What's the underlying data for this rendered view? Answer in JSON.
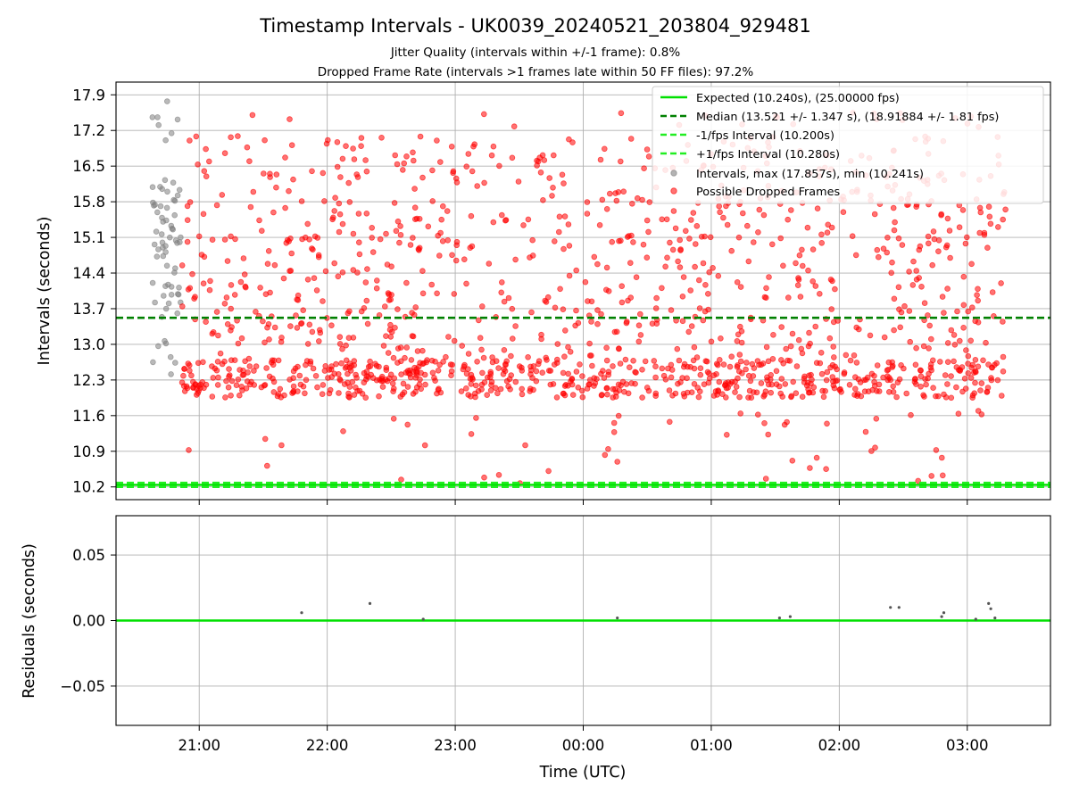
{
  "figure": {
    "title": "Timestamp Intervals - UK0039_20240521_203804_929481",
    "subtitle_line1": "Jitter Quality (intervals within +/-1 frame): 0.8%",
    "subtitle_line2": "Dropped Frame Rate (intervals >1 frames late within 50 FF files): 97.2%"
  },
  "chart_data": [
    {
      "type": "scatter",
      "panel": "intervals",
      "ylabel": "Intervals (seconds)",
      "xlabel": "",
      "ylim": [
        9.95,
        18.15
      ],
      "yticks": [
        "10.2",
        "10.9",
        "11.6",
        "12.3",
        "13.0",
        "13.7",
        "14.4",
        "15.1",
        "15.8",
        "16.5",
        "17.2",
        "17.9"
      ],
      "xlim": [
        "20:21",
        "03:39"
      ],
      "xticks": [
        "21:00",
        "22:00",
        "23:00",
        "00:00",
        "01:00",
        "02:00",
        "03:00"
      ],
      "grid": true,
      "legend_position": "top-right",
      "reference_lines": [
        {
          "label": "Expected (10.240s), (25.00000 fps)",
          "y": 10.24,
          "color": "#00e000",
          "style": "solid"
        },
        {
          "label": "Median (13.521 +/- 1.347 s), (18.91884 +/- 1.81 fps)",
          "y": 13.521,
          "color": "#008000",
          "style": "dashed"
        },
        {
          "label": "-1/fps Interval (10.200s)",
          "y": 10.2,
          "color": "#22ee22",
          "style": "dashed"
        },
        {
          "label": "+1/fps Interval (10.280s)",
          "y": 10.28,
          "color": "#22ee22",
          "style": "dashed"
        }
      ],
      "series": [
        {
          "name": "Intervals, max (17.857s), min (10.241s)",
          "color": "#808080",
          "x_range": [
            "20:38",
            "20:52"
          ],
          "y_range": [
            10.241,
            17.857
          ],
          "n_points": 70
        },
        {
          "name": "Possible Dropped Frames",
          "color": "#ff0000",
          "x_range": [
            "20:52",
            "03:18"
          ],
          "y_range": [
            10.24,
            17.56
          ],
          "n_points": 1500
        }
      ]
    },
    {
      "type": "scatter",
      "panel": "residuals",
      "ylabel": "Residuals (seconds)",
      "xlabel": "Time (UTC)",
      "ylim": [
        -0.08,
        0.08
      ],
      "yticks": [
        "−0.05",
        "0.00",
        "0.05"
      ],
      "xlim": [
        "20:21",
        "03:39"
      ],
      "xticks": [
        "21:00",
        "22:00",
        "23:00",
        "00:00",
        "01:00",
        "02:00",
        "03:00"
      ],
      "grid": true,
      "zero_line_color": "#00e000",
      "series": [
        {
          "name": "",
          "color": "#555555",
          "points": [
            {
              "x": "21:48",
              "y": 0.006
            },
            {
              "x": "22:20",
              "y": 0.013
            },
            {
              "x": "22:45",
              "y": 0.001
            },
            {
              "x": "00:16",
              "y": 0.002
            },
            {
              "x": "01:32",
              "y": 0.002
            },
            {
              "x": "01:37",
              "y": 0.003
            },
            {
              "x": "02:24",
              "y": 0.01
            },
            {
              "x": "02:28",
              "y": 0.01
            },
            {
              "x": "02:48",
              "y": 0.003
            },
            {
              "x": "02:49",
              "y": 0.006
            },
            {
              "x": "03:04",
              "y": 0.001
            },
            {
              "x": "03:10",
              "y": 0.013
            },
            {
              "x": "03:11",
              "y": 0.009
            },
            {
              "x": "03:13",
              "y": 0.002
            }
          ]
        }
      ]
    }
  ]
}
